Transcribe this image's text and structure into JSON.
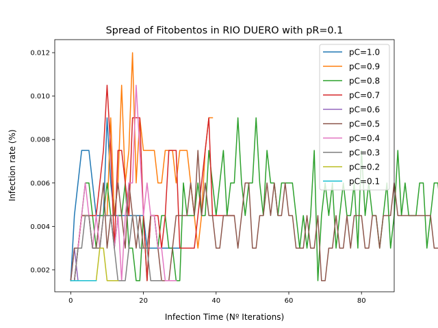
{
  "chart_data": {
    "type": "line",
    "title": "Spread of Fitobentos in RIO DUERO with pR=0.1",
    "xlabel": "Infection Time (Nº Iterations)",
    "ylabel": "Infection rate (%)",
    "xlim": [
      -4.4,
      89
    ],
    "ylim": [
      0.00099,
      0.0126
    ],
    "xticks": [
      0,
      20,
      40,
      60,
      80
    ],
    "yticks": [
      0.002,
      0.004,
      0.006,
      0.008,
      0.01,
      0.012
    ],
    "ytick_labels": [
      "0.002",
      "0.004",
      "0.006",
      "0.008",
      "0.010",
      "0.012"
    ],
    "legend_position": "top-right",
    "grid": false,
    "series": [
      {
        "name": "pC=1.0",
        "color": "#1f77b4",
        "values": [
          0.0015,
          0.0045,
          0.006,
          0.0075,
          0.0075,
          0.0075,
          0.006,
          0.0045,
          0.0045,
          0.0045,
          0.009,
          0.006,
          0.0045,
          0.0045,
          0.0045,
          0.0045,
          0.0045,
          0.0045,
          0.0045,
          0.0045,
          0.0045,
          0.003,
          0.003,
          0.003,
          0.003,
          0.003,
          0.003,
          0.003,
          0.003,
          0.003,
          0.003
        ]
      },
      {
        "name": "pC=0.9",
        "color": "#ff7f0e",
        "values": [
          0.0015,
          0.0015,
          0.003,
          0.0045,
          0.0045,
          0.0045,
          0.003,
          0.003,
          0.003,
          0.0045,
          0.0045,
          0.009,
          0.0045,
          0.006,
          0.0105,
          0.006,
          0.0075,
          0.012,
          0.006,
          0.009,
          0.0075,
          0.0075,
          0.0075,
          0.0075,
          0.006,
          0.006,
          0.0075,
          0.0075,
          0.0075,
          0.006,
          0.0075,
          0.0075,
          0.0075,
          0.006,
          0.0045,
          0.003,
          0.0045,
          0.0075,
          0.009,
          0.009
        ]
      },
      {
        "name": "pC=0.8",
        "color": "#2ca02c",
        "values": [
          0.0015,
          0.0015,
          0.003,
          0.0045,
          0.006,
          0.006,
          0.0045,
          0.003,
          0.0045,
          0.0045,
          0.006,
          0.0045,
          0.003,
          0.0045,
          0.0045,
          0.006,
          0.003,
          0.003,
          0.0015,
          0.0015,
          0.0045,
          0.0015,
          0.0045,
          0.0045,
          0.003,
          0.0045,
          0.0045,
          0.003,
          0.003,
          0.0015,
          0.0015,
          0.006,
          0.0045,
          0.0045,
          0.0045,
          0.006,
          0.0045,
          0.0045,
          0.0075,
          0.006,
          0.0045,
          0.006,
          0.0075,
          0.0045,
          0.006,
          0.006,
          0.009,
          0.006,
          0.0045,
          0.006,
          0.006,
          0.009,
          0.006,
          0.0045,
          0.0075,
          0.006,
          0.006,
          0.0045,
          0.006,
          0.006,
          0.006,
          0.006,
          0.0045,
          0.003,
          0.0045,
          0.003,
          0.0045,
          0.0075,
          0.0015,
          0.0045,
          0.006,
          0.0045,
          0.006,
          0.003,
          0.0045,
          0.006,
          0.0045,
          0.0045,
          0.006,
          0.003,
          0.0075,
          0.0045,
          0.006,
          0.0045,
          0.0045,
          0.003,
          0.0045,
          0.006,
          0.003,
          0.0045,
          0.0075,
          0.0045,
          0.006,
          0.0045,
          0.0045,
          0.0045,
          0.006,
          0.006,
          0.003,
          0.0045,
          0.006,
          0.006,
          0.0045,
          0.0045,
          0.0075,
          0.0045,
          0.0045,
          0.006,
          0.003,
          0.003,
          0.0045,
          0.006,
          0.006,
          0.0045,
          0.003,
          0.0045,
          0.006,
          0.006,
          0.0075,
          0.0045,
          0.003,
          0.0045,
          0.0045,
          0.0045,
          0.006,
          0.006,
          0.0045,
          0.0075,
          0.006,
          0.0045,
          0.0045,
          0.006,
          0.0045,
          0.006,
          0.006,
          0.0045,
          0.0045,
          0.006,
          0.0045,
          0.0045,
          0.003,
          0.0045,
          0.006,
          0.006,
          0.006,
          0.006,
          0.006,
          0.003,
          0.0045,
          0.006,
          0.003,
          0.0045,
          0.006,
          0.0045,
          0.006,
          0.0075,
          0.006,
          0.006,
          0.003,
          0.0045,
          0.0045,
          0.0045,
          0.006,
          0.0045,
          0.003,
          0.0045,
          0.006,
          0.0075,
          0.0045,
          0.006,
          0.006,
          0.006,
          0.0045,
          0.003,
          0.003,
          0.0045,
          0.006,
          0.0045,
          0.006,
          0.006,
          0.0045,
          0.0045,
          0.003,
          0.006,
          0.0045,
          0.0045,
          0.0045,
          0.006,
          0.006,
          0.0045,
          0.0075,
          0.006,
          0.0045,
          0.006,
          0.006,
          0.003,
          0.006,
          0.0045,
          0.006,
          0.0045,
          0.006,
          0.0045,
          0.0075,
          0.0045,
          0.006,
          0.003,
          0.0045,
          0.006,
          0.0045,
          0.006,
          0.0045,
          0.006,
          0.003,
          0.006,
          0.0045,
          0.0045,
          0.003,
          0.0045,
          0.006,
          0.0045,
          0.003,
          0.0045,
          0.006,
          0.0045,
          0.0045,
          0.003,
          0.0045,
          0.006,
          0.006,
          0.0045,
          0.0045,
          0.006,
          0.003,
          0.003,
          0.0045,
          0.006,
          0.006,
          0.0045,
          0.0045,
          0.003,
          0.006,
          0.006,
          0.0045,
          0.0045,
          0.003,
          0.0045,
          0.006,
          0.0045,
          0.006,
          0.006,
          0.003,
          0.0045,
          0.006,
          0.0045,
          0.003,
          0.0045,
          0.006,
          0.0075,
          0.0045,
          0.006,
          0.006,
          0.0045,
          0.0045,
          0.003,
          0.0045
        ]
      },
      {
        "name": "pC=0.7",
        "color": "#d62728",
        "values": [
          0.0015,
          0.0015,
          0.003,
          0.0045,
          0.0045,
          0.0045,
          0.0045,
          0.0045,
          0.006,
          0.0075,
          0.0105,
          0.0075,
          0.003,
          0.0075,
          0.0075,
          0.006,
          0.0045,
          0.009,
          0.009,
          0.009,
          0.0045,
          0.0015,
          0.0045,
          0.0045,
          0.0045,
          0.003,
          0.0045,
          0.0075,
          0.0075,
          0.0075,
          0.003,
          0.003,
          0.003,
          0.003,
          0.003,
          0.0045,
          0.006,
          0.0075,
          0.009,
          0.0045,
          0.0045,
          0.0045,
          0.0045,
          0.0045,
          0.0045,
          0.0045
        ]
      },
      {
        "name": "pC=0.6",
        "color": "#9467bd",
        "values": [
          0.0015,
          0.003,
          0.0015,
          0.0015,
          0.0015,
          0.0015,
          0.0015
        ]
      },
      {
        "name": "pC=0.5",
        "color": "#8c564b",
        "values": [
          0.0015,
          0.003,
          0.003,
          0.0045,
          0.0045,
          0.0045,
          0.003,
          0.003,
          0.0045,
          0.006,
          0.003,
          0.0045,
          0.0045,
          0.006,
          0.0045,
          0.003,
          0.006,
          0.0045,
          0.003,
          0.0045,
          0.003,
          0.003,
          0.0045,
          0.0045,
          0.003,
          0.0015,
          0.0015,
          0.0015,
          0.003,
          0.0045,
          0.0045,
          0.0045,
          0.0045,
          0.006,
          0.0045,
          0.0075,
          0.0045,
          0.006,
          0.0045,
          0.0045,
          0.003,
          0.003,
          0.0045,
          0.0045,
          0.0045,
          0.0045,
          0.003,
          0.0045,
          0.006,
          0.006,
          0.003,
          0.003,
          0.0045,
          0.0045,
          0.006,
          0.0045,
          0.006,
          0.0045,
          0.0045,
          0.006,
          0.0045,
          0.0045,
          0.003,
          0.003,
          0.003,
          0.0045,
          0.003,
          0.003,
          0.0045,
          0.0015,
          0.0015,
          0.003,
          0.003,
          0.0045,
          0.003,
          0.003,
          0.0045,
          0.003,
          0.0045,
          0.0045,
          0.0045,
          0.003,
          0.003,
          0.0045,
          0.0045,
          0.003,
          0.0045,
          0.0045,
          0.0045,
          0.006,
          0.0045,
          0.0045,
          0.0045,
          0.0045,
          0.0045,
          0.0045,
          0.0045,
          0.0045,
          0.0045,
          0.0045,
          0.003,
          0.003,
          0.003,
          0.003,
          0.003,
          0.003,
          0.0045,
          0.006,
          0.0075,
          0.0045,
          0.0045,
          0.003,
          0.003,
          0.003,
          0.003,
          0.0015,
          0.0015,
          0.003,
          0.003,
          0.003,
          0.0045,
          0.006,
          0.0015,
          0.0015,
          0.0015,
          0.0015,
          0.0015,
          0.0015,
          0.0015,
          0.0015,
          0.0015,
          0.0015,
          0.0015
        ]
      },
      {
        "name": "pC=0.4",
        "color": "#e377c2",
        "values": [
          0.0015,
          0.0015,
          0.003,
          0.0045,
          0.006,
          0.0045,
          0.003,
          0.0045,
          0.003,
          0.0045,
          0.0045,
          0.0045,
          0.003,
          0.0045,
          0.0015,
          0.0045,
          0.006,
          0.006,
          0.0105,
          0.0075,
          0.0045,
          0.006,
          0.0045,
          0.0045,
          0.003,
          0.003,
          0.0015,
          0.0015,
          0.0015,
          0.0015
        ]
      },
      {
        "name": "pC=0.3",
        "color": "#7f7f7f",
        "values": [
          0.0015,
          0.0015,
          0.003,
          0.003,
          0.0045,
          0.0045,
          0.003,
          0.003,
          0.003,
          0.0045,
          0.0045,
          0.0045,
          0.003,
          0.0015,
          0.0015,
          0.0015,
          0.003,
          0.0045,
          0.0045,
          0.003,
          0.003,
          0.003,
          0.0015,
          0.0015,
          0.0015,
          0.0015
        ]
      },
      {
        "name": "pC=0.2",
        "color": "#bcbd22",
        "values": [
          0.0015,
          0.0015,
          0.0015,
          0.0015,
          0.0015,
          0.0015,
          0.0015,
          0.0015,
          0.003,
          0.003,
          0.0015,
          0.0015,
          0.0015,
          0.0015
        ]
      },
      {
        "name": "pC=0.1",
        "color": "#17becf",
        "values": [
          0.0015,
          0.0015,
          0.0015,
          0.0015,
          0.0015,
          0.0015,
          0.0015,
          0.0015
        ]
      }
    ]
  }
}
